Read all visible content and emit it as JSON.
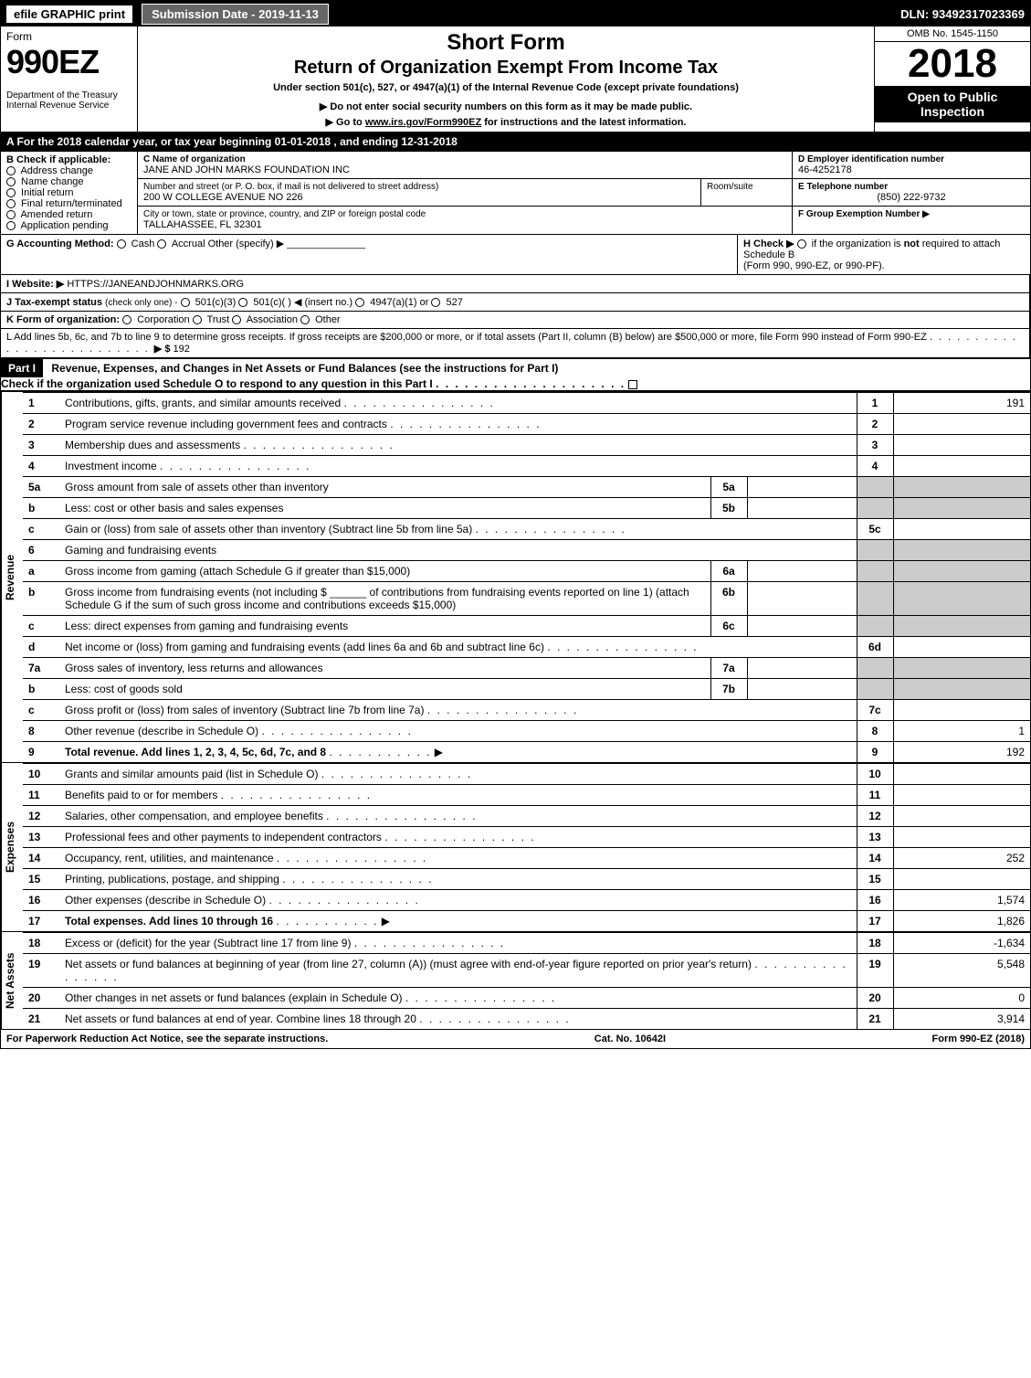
{
  "topbar": {
    "print_label": "efile GRAPHIC print",
    "submission_label": "Submission Date - 2019-11-13",
    "dln": "DLN: 93492317023369"
  },
  "header": {
    "form_word": "Form",
    "form_number": "990EZ",
    "dept": "Department of the Treasury",
    "irs": "Internal Revenue Service",
    "title_short": "Short Form",
    "title_main": "Return of Organization Exempt From Income Tax",
    "subtitle1": "Under section 501(c), 527, or 4947(a)(1) of the Internal Revenue Code (except private foundations)",
    "subtitle2": "▶ Do not enter social security numbers on this form as it may be made public.",
    "subtitle3_pre": "▶ Go to ",
    "subtitle3_link": "www.irs.gov/Form990EZ",
    "subtitle3_post": " for instructions and the latest information.",
    "omb": "OMB No. 1545-1150",
    "year": "2018",
    "open1": "Open to Public",
    "open2": "Inspection"
  },
  "period": {
    "label_pre": "A For the 2018 calendar year, or tax year beginning ",
    "begin": "01-01-2018",
    "mid": " , and ending ",
    "end": "12-31-2018"
  },
  "boxB": {
    "label": "B Check if applicable:",
    "opts": [
      "Address change",
      "Name change",
      "Initial return",
      "Final return/terminated",
      "Amended return",
      "Application pending"
    ]
  },
  "boxC": {
    "label_name": "C Name of organization",
    "name": "JANE AND JOHN MARKS FOUNDATION INC",
    "label_addr": "Number and street (or P. O. box, if mail is not delivered to street address)",
    "addr": "200 W COLLEGE AVENUE NO 226",
    "room_label": "Room/suite",
    "label_city": "City or town, state or province, country, and ZIP or foreign postal code",
    "city": "TALLAHASSEE, FL  32301"
  },
  "boxD": {
    "label": "D Employer identification number",
    "value": "46-4252178"
  },
  "boxE": {
    "label": "E Telephone number",
    "value": "(850) 222-9732"
  },
  "boxF": {
    "label": "F Group Exemption Number  ▶"
  },
  "lineG": {
    "label": "G Accounting Method:",
    "opts": [
      "Cash",
      "Accrual"
    ],
    "other": "Other (specify) ▶"
  },
  "lineH": {
    "label": "H  Check ▶",
    "text1": "if the organization is ",
    "not": "not",
    "text2": " required to attach Schedule B",
    "text3": "(Form 990, 990-EZ, or 990-PF)."
  },
  "lineI": {
    "label": "I Website: ▶",
    "value": "HTTPS://JANEANDJOHNMARKS.ORG"
  },
  "lineJ": {
    "label": "J Tax-exempt status",
    "sub": "(check only one) -",
    "opts": [
      "501(c)(3)",
      "501(c)(  ) ◀ (insert no.)",
      "4947(a)(1) or",
      "527"
    ]
  },
  "lineK": {
    "label": "K Form of organization:",
    "opts": [
      "Corporation",
      "Trust",
      "Association",
      "Other"
    ]
  },
  "lineL": {
    "text": "L Add lines 5b, 6c, and 7b to line 9 to determine gross receipts. If gross receipts are $200,000 or more, or if total assets (Part II, column (B) below) are $500,000 or more, file Form 990 instead of Form 990-EZ",
    "arrow": "▶ $",
    "value": "192"
  },
  "partI": {
    "label": "Part I",
    "title": "Revenue, Expenses, and Changes in Net Assets or Fund Balances",
    "sub": "(see the instructions for Part I)",
    "check_line": "Check if the organization used Schedule O to respond to any question in this Part I"
  },
  "sections": {
    "revenue": "Revenue",
    "expenses": "Expenses",
    "netassets": "Net Assets"
  },
  "lines": [
    {
      "n": "1",
      "txt": "Contributions, gifts, grants, and similar amounts received",
      "col": "1",
      "amt": "191"
    },
    {
      "n": "2",
      "txt": "Program service revenue including government fees and contracts",
      "col": "2",
      "amt": ""
    },
    {
      "n": "3",
      "txt": "Membership dues and assessments",
      "col": "3",
      "amt": ""
    },
    {
      "n": "4",
      "txt": "Investment income",
      "col": "4",
      "amt": ""
    },
    {
      "n": "5a",
      "txt": "Gross amount from sale of assets other than inventory",
      "sub": "5a"
    },
    {
      "n": "b",
      "txt": "Less: cost or other basis and sales expenses",
      "sub": "5b"
    },
    {
      "n": "c",
      "txt": "Gain or (loss) from sale of assets other than inventory (Subtract line 5b from line 5a)",
      "col": "5c",
      "amt": ""
    },
    {
      "n": "6",
      "txt": "Gaming and fundraising events",
      "nocols": true
    },
    {
      "n": "a",
      "txt": "Gross income from gaming (attach Schedule G if greater than $15,000)",
      "sub": "6a"
    },
    {
      "n": "b",
      "txt": "Gross income from fundraising events (not including $ ______ of contributions from fundraising events reported on line 1) (attach Schedule G if the sum of such gross income and contributions exceeds $15,000)",
      "sub": "6b"
    },
    {
      "n": "c",
      "txt": "Less: direct expenses from gaming and fundraising events",
      "sub": "6c"
    },
    {
      "n": "d",
      "txt": "Net income or (loss) from gaming and fundraising events (add lines 6a and 6b and subtract line 6c)",
      "col": "6d",
      "amt": ""
    },
    {
      "n": "7a",
      "txt": "Gross sales of inventory, less returns and allowances",
      "sub": "7a"
    },
    {
      "n": "b",
      "txt": "Less: cost of goods sold",
      "sub": "7b"
    },
    {
      "n": "c",
      "txt": "Gross profit or (loss) from sales of inventory (Subtract line 7b from line 7a)",
      "col": "7c",
      "amt": ""
    },
    {
      "n": "8",
      "txt": "Other revenue (describe in Schedule O)",
      "col": "8",
      "amt": "1"
    },
    {
      "n": "9",
      "txt": "Total revenue. Add lines 1, 2, 3, 4, 5c, 6d, 7c, and 8",
      "col": "9",
      "amt": "192",
      "bold": true,
      "arrow": true
    }
  ],
  "exp_lines": [
    {
      "n": "10",
      "txt": "Grants and similar amounts paid (list in Schedule O)",
      "col": "10",
      "amt": ""
    },
    {
      "n": "11",
      "txt": "Benefits paid to or for members",
      "col": "11",
      "amt": ""
    },
    {
      "n": "12",
      "txt": "Salaries, other compensation, and employee benefits",
      "col": "12",
      "amt": ""
    },
    {
      "n": "13",
      "txt": "Professional fees and other payments to independent contractors",
      "col": "13",
      "amt": ""
    },
    {
      "n": "14",
      "txt": "Occupancy, rent, utilities, and maintenance",
      "col": "14",
      "amt": "252"
    },
    {
      "n": "15",
      "txt": "Printing, publications, postage, and shipping",
      "col": "15",
      "amt": ""
    },
    {
      "n": "16",
      "txt": "Other expenses (describe in Schedule O)",
      "col": "16",
      "amt": "1,574"
    },
    {
      "n": "17",
      "txt": "Total expenses. Add lines 10 through 16",
      "col": "17",
      "amt": "1,826",
      "bold": true,
      "arrow": true
    }
  ],
  "na_lines": [
    {
      "n": "18",
      "txt": "Excess or (deficit) for the year (Subtract line 17 from line 9)",
      "col": "18",
      "amt": "-1,634"
    },
    {
      "n": "19",
      "txt": "Net assets or fund balances at beginning of year (from line 27, column (A)) (must agree with end-of-year figure reported on prior year's return)",
      "col": "19",
      "amt": "5,548"
    },
    {
      "n": "20",
      "txt": "Other changes in net assets or fund balances (explain in Schedule O)",
      "col": "20",
      "amt": "0"
    },
    {
      "n": "21",
      "txt": "Net assets or fund balances at end of year. Combine lines 18 through 20",
      "col": "21",
      "amt": "3,914"
    }
  ],
  "footer": {
    "left": "For Paperwork Reduction Act Notice, see the separate instructions.",
    "mid": "Cat. No. 10642I",
    "right": "Form 990-EZ (2018)"
  }
}
